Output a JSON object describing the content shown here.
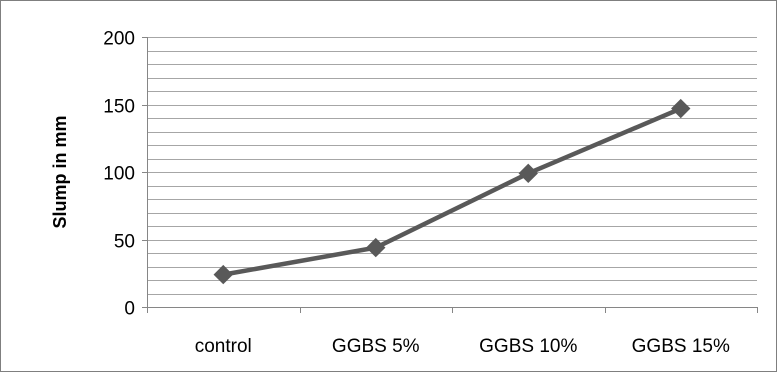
{
  "chart_data": {
    "type": "line",
    "title": "",
    "xlabel": "",
    "ylabel": "Slump in mm",
    "ylim": [
      0,
      200
    ],
    "y_ticks": [
      "0",
      "50",
      "100",
      "150",
      "200"
    ],
    "major_tick_step": 50,
    "minor_gridline_step": 10,
    "grid": true,
    "legend": "none",
    "categories": [
      "control",
      "GGBS 5%",
      "GGBS 10%",
      "GGBS 15%"
    ],
    "series": [
      {
        "values": [
          24,
          44,
          99,
          147
        ],
        "marker": "diamond",
        "color": "#595959"
      }
    ]
  }
}
